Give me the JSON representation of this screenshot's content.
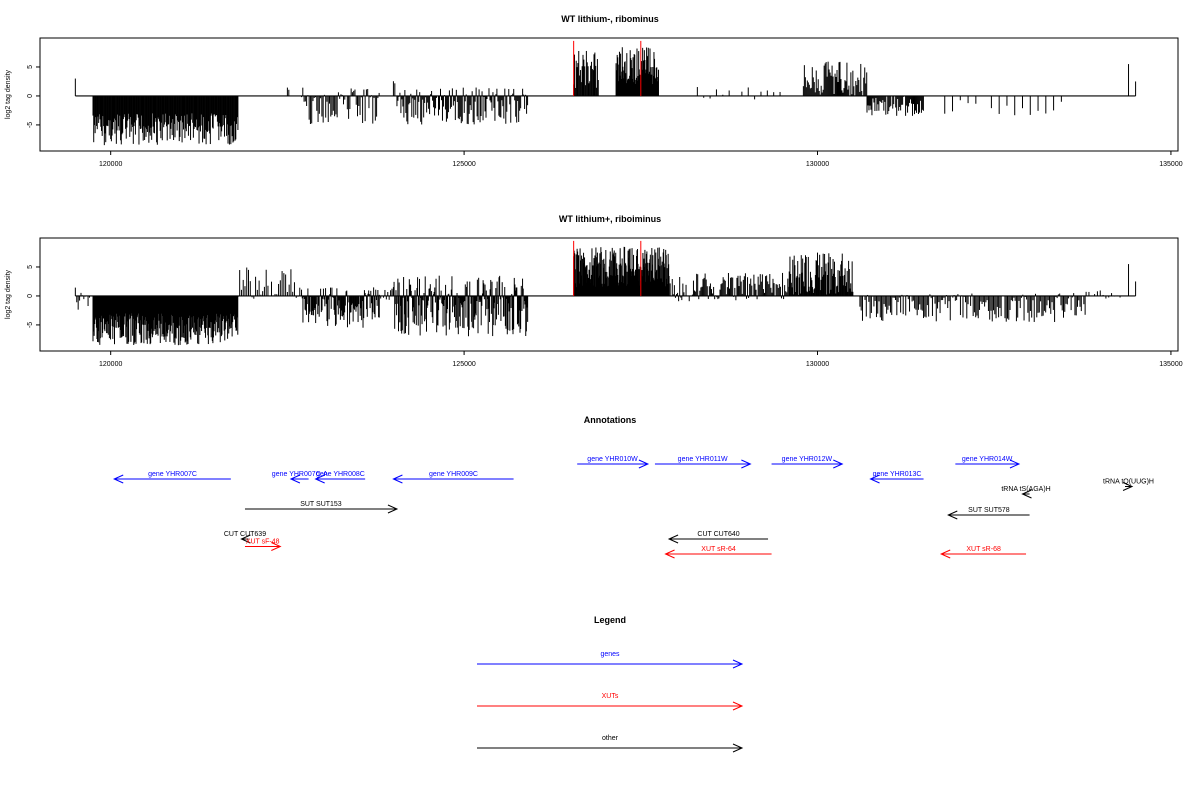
{
  "chart_data": [
    {
      "type": "bar",
      "title": "WT lithium-, ribominus",
      "ylabel": "log2 tag density",
      "xlim": [
        119000,
        135100
      ],
      "ylim": [
        -9.5,
        10
      ],
      "xticks": [
        120000,
        125000,
        130000,
        135000
      ],
      "yticks": [
        -5,
        0,
        5
      ],
      "grid": false,
      "segments": [
        {
          "from": 119500,
          "to": 119500,
          "step": 1,
          "min": 3,
          "max": 3
        },
        {
          "from": 119750,
          "to": 121800,
          "step": 10,
          "min": -8.5,
          "max": -3
        },
        {
          "from": 122500,
          "to": 122520,
          "step": 20,
          "min": 1,
          "max": 2.5
        },
        {
          "from": 122700,
          "to": 123800,
          "step": 18,
          "min": -5,
          "max": 1.5
        },
        {
          "from": 124000,
          "to": 124020,
          "step": 20,
          "min": 2,
          "max": 3
        },
        {
          "from": 124050,
          "to": 125900,
          "step": 14,
          "min": -5,
          "max": 1.5
        },
        {
          "from": 126550,
          "to": 126900,
          "step": 12,
          "min": 1,
          "max": 8
        },
        {
          "from": 127150,
          "to": 127750,
          "step": 8,
          "min": 2,
          "max": 8.5
        },
        {
          "from": 128300,
          "to": 129500,
          "step": 90,
          "min": -1,
          "max": 2
        },
        {
          "from": 129800,
          "to": 130700,
          "step": 14,
          "min": 0,
          "max": 6
        },
        {
          "from": 130700,
          "to": 131500,
          "step": 14,
          "min": -3.5,
          "max": 0
        },
        {
          "from": 131800,
          "to": 133500,
          "step": 110,
          "min": -3.5,
          "max": 0
        },
        {
          "from": 134400,
          "to": 134400,
          "step": 1,
          "min": 5.5,
          "max": 5.5
        },
        {
          "from": 134500,
          "to": 134500,
          "step": 1,
          "min": 2.5,
          "max": 2.5
        }
      ],
      "highlights": [
        {
          "x": 126550,
          "y": 9.5
        },
        {
          "x": 127500,
          "y": 9.5
        }
      ]
    },
    {
      "type": "bar",
      "title": "WT lithium+, riboiminus",
      "ylabel": "log2 tag density",
      "xlim": [
        119000,
        135100
      ],
      "ylim": [
        -9.5,
        10
      ],
      "xticks": [
        120000,
        125000,
        130000,
        135000
      ],
      "yticks": [
        -5,
        0,
        5
      ],
      "grid": false,
      "segments": [
        {
          "from": 119500,
          "to": 119700,
          "step": 20,
          "min": -3,
          "max": 2.5
        },
        {
          "from": 119750,
          "to": 121800,
          "step": 8,
          "min": -8.5,
          "max": -3
        },
        {
          "from": 121800,
          "to": 122700,
          "step": 25,
          "min": -1,
          "max": 5
        },
        {
          "from": 122700,
          "to": 123800,
          "step": 10,
          "min": -5.5,
          "max": 1.5
        },
        {
          "from": 123800,
          "to": 124000,
          "step": 20,
          "min": -1,
          "max": 1.5
        },
        {
          "from": 124000,
          "to": 125900,
          "step": 9,
          "min": -7,
          "max": 3.5
        },
        {
          "from": 126550,
          "to": 127900,
          "step": 7,
          "min": 1.5,
          "max": 8.5
        },
        {
          "from": 127900,
          "to": 129600,
          "step": 15,
          "min": -1,
          "max": 4
        },
        {
          "from": 129600,
          "to": 130500,
          "step": 10,
          "min": 0,
          "max": 7.5
        },
        {
          "from": 130600,
          "to": 133800,
          "step": 18,
          "min": -4.5,
          "max": 0.5
        },
        {
          "from": 133800,
          "to": 134300,
          "step": 40,
          "min": -0.5,
          "max": 1
        },
        {
          "from": 134400,
          "to": 134400,
          "step": 1,
          "min": 5.5,
          "max": 5.5
        },
        {
          "from": 134500,
          "to": 134500,
          "step": 1,
          "min": 2.5,
          "max": 2.5
        }
      ],
      "highlights": [
        {
          "x": 126550,
          "y": 9.5
        },
        {
          "x": 127500,
          "y": 9.5
        }
      ]
    }
  ],
  "annotations": {
    "title": "Annotations",
    "colors": {
      "genes": "#0000ff",
      "XUTs": "#ff0000",
      "other": "#000000"
    },
    "features": [
      {
        "label": "gene YHR007C",
        "start": 121700,
        "end": 120050,
        "row": 1,
        "kind": "genes"
      },
      {
        "label": "gene YHR007C-A",
        "start": 122800,
        "end": 122550,
        "row": 1,
        "kind": "genes"
      },
      {
        "label": "gene YHR008C",
        "start": 123600,
        "end": 122900,
        "row": 1,
        "kind": "genes"
      },
      {
        "label": "gene YHR009C",
        "start": 125700,
        "end": 124000,
        "row": 1,
        "kind": "genes"
      },
      {
        "label": "gene YHR010W",
        "start": 126600,
        "end": 127600,
        "row": 0,
        "kind": "genes"
      },
      {
        "label": "gene YHR011W",
        "start": 127700,
        "end": 129050,
        "row": 0,
        "kind": "genes"
      },
      {
        "label": "gene YHR012W",
        "start": 129350,
        "end": 130350,
        "row": 0,
        "kind": "genes"
      },
      {
        "label": "gene YHR013C",
        "start": 131500,
        "end": 130750,
        "row": 1,
        "kind": "genes"
      },
      {
        "label": "gene YHR014W",
        "start": 131950,
        "end": 132850,
        "row": 0,
        "kind": "genes"
      },
      {
        "label": "tRNA tS(AGA)H",
        "start": 133000,
        "end": 132900,
        "row": 2,
        "kind": "other"
      },
      {
        "label": "tRNA tQ(UUG)H",
        "start": 134350,
        "end": 134450,
        "row": 1.5,
        "kind": "other"
      },
      {
        "label": "SUT SUT153",
        "start": 121900,
        "end": 124050,
        "row": 3,
        "kind": "other"
      },
      {
        "label": "SUT SUT578",
        "start": 133000,
        "end": 131850,
        "row": 3.4,
        "kind": "other"
      },
      {
        "label": "CUT CUT639",
        "start": 121950,
        "end": 121850,
        "row": 5,
        "kind": "other"
      },
      {
        "label": "CUT CUT640",
        "start": 129300,
        "end": 127900,
        "row": 5,
        "kind": "other"
      },
      {
        "label": "XUT sF-48",
        "start": 121900,
        "end": 122400,
        "row": 5.5,
        "kind": "XUTs"
      },
      {
        "label": "XUT sR-64",
        "start": 129350,
        "end": 127850,
        "row": 6,
        "kind": "XUTs"
      },
      {
        "label": "XUT sR-68",
        "start": 132950,
        "end": 131750,
        "row": 6,
        "kind": "XUTs"
      }
    ]
  },
  "legend": {
    "title": "Legend",
    "entries": [
      {
        "label": "genes",
        "color": "#0000ff"
      },
      {
        "label": "XUTs",
        "color": "#ff0000"
      },
      {
        "label": "other",
        "color": "#000000"
      }
    ]
  }
}
